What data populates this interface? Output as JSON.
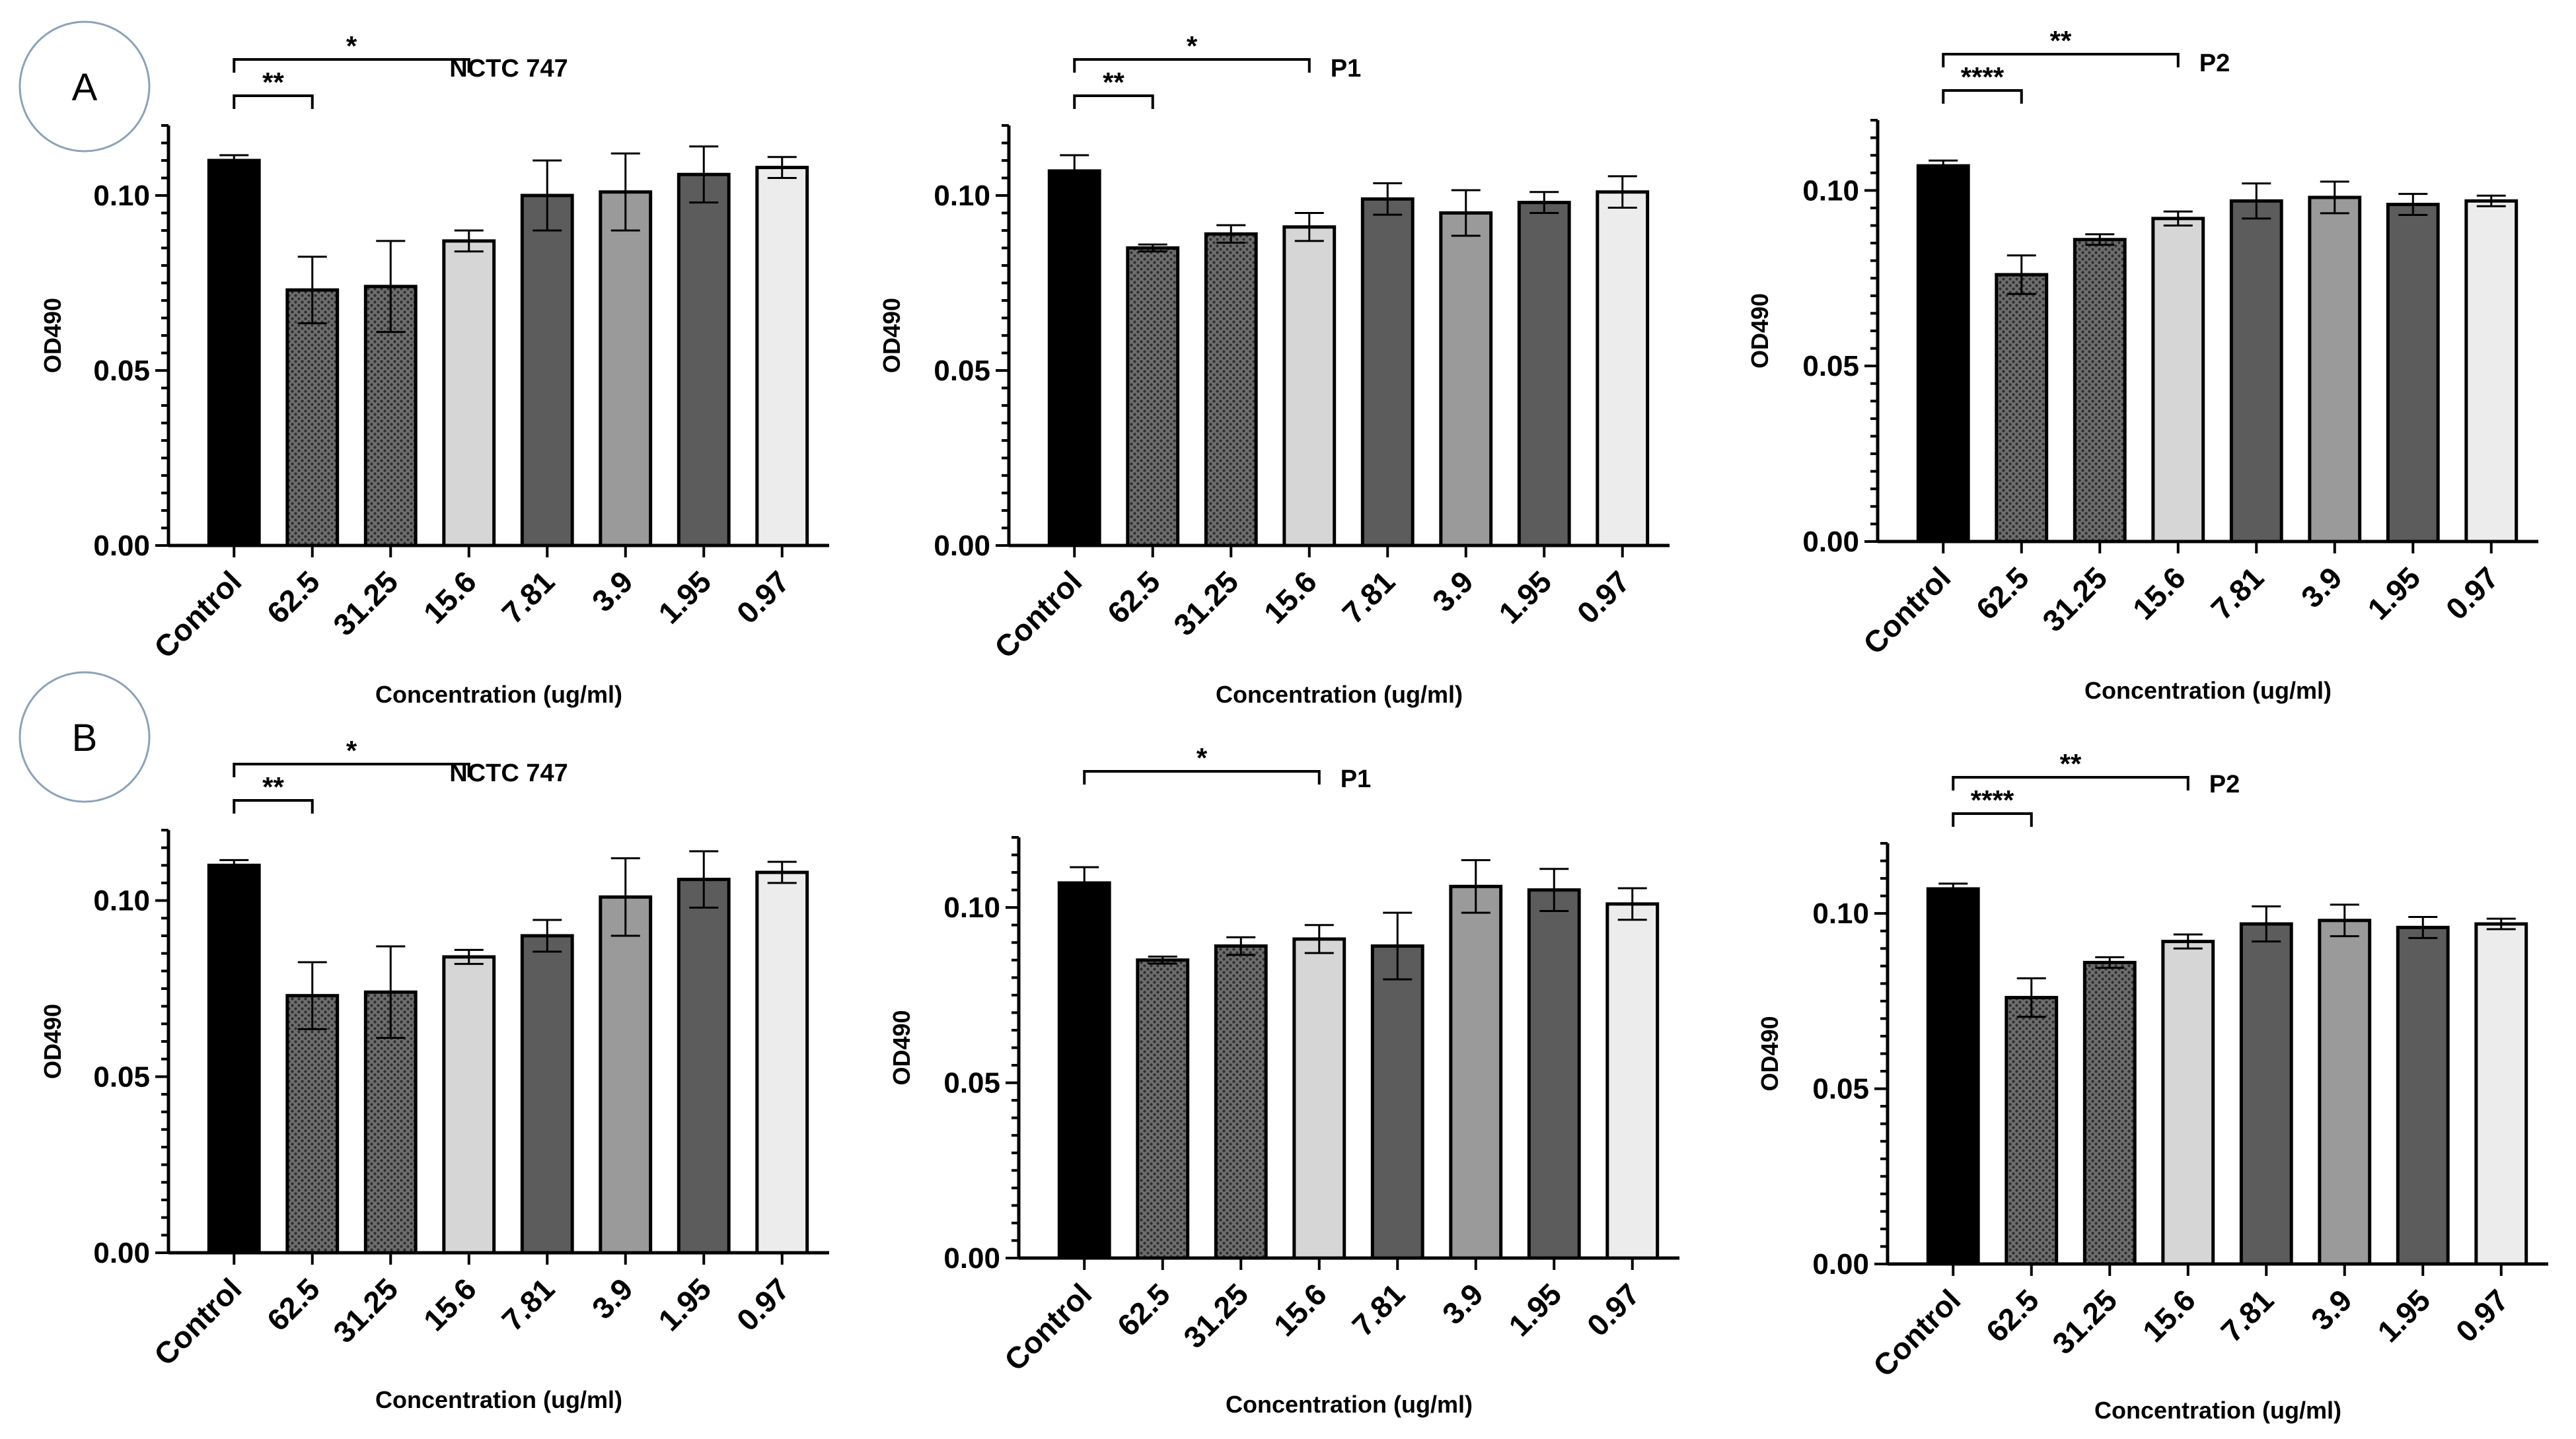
{
  "panel_labels": [
    "A",
    "B"
  ],
  "colors": {
    "control": "#000000",
    "dotted": "#5a5a5a",
    "light": "#d6d6d6",
    "dark": "#5c5c5c",
    "medium": "#9a9a9a",
    "lightest": "#ececec",
    "panel_circle": "#8aa2bb"
  },
  "chart_data": [
    {
      "type": "bar",
      "panel": "A",
      "title": "NCTC 747",
      "categories": [
        "Control",
        "62.5",
        "31.25",
        "15.6",
        "7.81",
        "3.9",
        "1.95",
        "0.97"
      ],
      "values": [
        0.11,
        0.073,
        0.074,
        0.087,
        0.1,
        0.101,
        0.106,
        0.108
      ],
      "errors": [
        0.0015,
        0.0095,
        0.013,
        0.003,
        0.01,
        0.011,
        0.008,
        0.003
      ],
      "xlabel": "Concentration (ug/ml)",
      "ylabel": "OD490",
      "ylim": [
        0,
        0.12
      ],
      "yticks": [
        "0.00",
        "0.05",
        "0.10"
      ],
      "significance": [
        {
          "from": 0,
          "to": 1,
          "label": "**"
        },
        {
          "from": 0,
          "to": 3,
          "label": "*"
        }
      ]
    },
    {
      "type": "bar",
      "panel": "A",
      "title": "P1",
      "categories": [
        "Control",
        "62.5",
        "31.25",
        "15.6",
        "7.81",
        "3.9",
        "1.95",
        "0.97"
      ],
      "values": [
        0.107,
        0.085,
        0.089,
        0.091,
        0.099,
        0.095,
        0.098,
        0.101
      ],
      "errors": [
        0.0045,
        0.001,
        0.0025,
        0.004,
        0.0045,
        0.0065,
        0.003,
        0.0045
      ],
      "xlabel": "Concentration (ug/ml)",
      "ylabel": "OD490",
      "ylim": [
        0,
        0.12
      ],
      "yticks": [
        "0.00",
        "0.05",
        "0.10"
      ],
      "significance": [
        {
          "from": 0,
          "to": 1,
          "label": "**"
        },
        {
          "from": 0,
          "to": 3,
          "label": "*"
        }
      ]
    },
    {
      "type": "bar",
      "panel": "A",
      "title": "P2",
      "categories": [
        "Control",
        "62.5",
        "31.25",
        "15.6",
        "7.81",
        "3.9",
        "1.95",
        "0.97"
      ],
      "values": [
        0.107,
        0.076,
        0.086,
        0.092,
        0.097,
        0.098,
        0.096,
        0.097
      ],
      "errors": [
        0.0015,
        0.0055,
        0.0015,
        0.002,
        0.005,
        0.0045,
        0.003,
        0.0015
      ],
      "xlabel": "Concentration (ug/ml)",
      "ylabel": "OD490",
      "ylim": [
        0,
        0.12
      ],
      "yticks": [
        "0.00",
        "0.05",
        "0.10"
      ],
      "significance": [
        {
          "from": 0,
          "to": 1,
          "label": "****"
        },
        {
          "from": 0,
          "to": 3,
          "label": "**"
        }
      ]
    },
    {
      "type": "bar",
      "panel": "B",
      "title": "NCTC 747",
      "categories": [
        "Control",
        "62.5",
        "31.25",
        "15.6",
        "7.81",
        "3.9",
        "1.95",
        "0.97"
      ],
      "values": [
        0.11,
        0.073,
        0.074,
        0.084,
        0.09,
        0.101,
        0.106,
        0.108
      ],
      "errors": [
        0.0015,
        0.0095,
        0.013,
        0.002,
        0.0045,
        0.011,
        0.008,
        0.003
      ],
      "xlabel": "Concentration (ug/ml)",
      "ylabel": "OD490",
      "ylim": [
        0,
        0.12
      ],
      "yticks": [
        "0.00",
        "0.05",
        "0.10"
      ],
      "significance": [
        {
          "from": 0,
          "to": 1,
          "label": "**"
        },
        {
          "from": 0,
          "to": 3,
          "label": "*"
        }
      ]
    },
    {
      "type": "bar",
      "panel": "B",
      "title": "P1",
      "categories": [
        "Control",
        "62.5",
        "31.25",
        "15.6",
        "7.81",
        "3.9",
        "1.95",
        "0.97"
      ],
      "values": [
        0.107,
        0.085,
        0.089,
        0.091,
        0.089,
        0.106,
        0.105,
        0.101
      ],
      "errors": [
        0.0045,
        0.001,
        0.0025,
        0.004,
        0.0095,
        0.0075,
        0.006,
        0.0045
      ],
      "xlabel": "Concentration (ug/ml)",
      "ylabel": "OD490",
      "ylim": [
        0,
        0.12
      ],
      "yticks": [
        "0.00",
        "0.05",
        "0.10"
      ],
      "significance": [
        {
          "from": 0,
          "to": 3,
          "label": "*"
        }
      ]
    },
    {
      "type": "bar",
      "panel": "B",
      "title": "P2",
      "categories": [
        "Control",
        "62.5",
        "31.25",
        "15.6",
        "7.81",
        "3.9",
        "1.95",
        "0.97"
      ],
      "values": [
        0.107,
        0.076,
        0.086,
        0.092,
        0.097,
        0.098,
        0.096,
        0.097
      ],
      "errors": [
        0.0015,
        0.0055,
        0.0015,
        0.002,
        0.005,
        0.0045,
        0.003,
        0.0015
      ],
      "xlabel": "Concentration (ug/ml)",
      "ylabel": "OD490",
      "ylim": [
        0,
        0.12
      ],
      "yticks": [
        "0.00",
        "0.05",
        "0.10"
      ],
      "significance": [
        {
          "from": 0,
          "to": 1,
          "label": "****"
        },
        {
          "from": 0,
          "to": 3,
          "label": "**"
        }
      ]
    }
  ]
}
